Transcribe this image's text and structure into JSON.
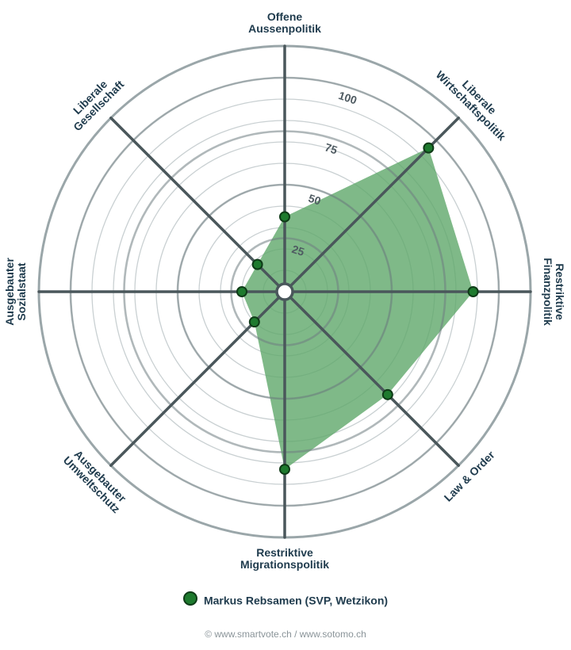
{
  "chart_data": {
    "type": "radar",
    "title": "",
    "axes": [
      [
        "Offene",
        "Aussenpolitik"
      ],
      [
        "Liberale",
        "Wirtschaftspolitik"
      ],
      [
        "Restriktive",
        "Finanzpolitik"
      ],
      [
        "Law & Order"
      ],
      [
        "Restriktive",
        "Migrationspolitik"
      ],
      [
        "Ausgebauter",
        "Umweltschutz"
      ],
      [
        "Ausgebauter",
        "Sozialstaat"
      ],
      [
        "Liberale",
        "Gesellschaft"
      ]
    ],
    "axis_range": [
      0,
      100
    ],
    "ticks": [
      25,
      50,
      75,
      100
    ],
    "tick_labels": [
      "25",
      "50",
      "75",
      "100"
    ],
    "grid_step": 10,
    "series": [
      {
        "name": "Markus Rebsamen (SVP, Wetzikon)",
        "values": [
          35,
          95,
          88,
          68,
          83,
          20,
          20,
          18
        ],
        "color": "#1e7a2e",
        "fill_color": "#5fa86a"
      }
    ],
    "legend_position": "bottom"
  },
  "legend": {
    "label": "Markus Rebsamen (SVP, Wetzikon)"
  },
  "footer": {
    "text": "© www.smartvote.ch / www.sotomo.ch"
  }
}
